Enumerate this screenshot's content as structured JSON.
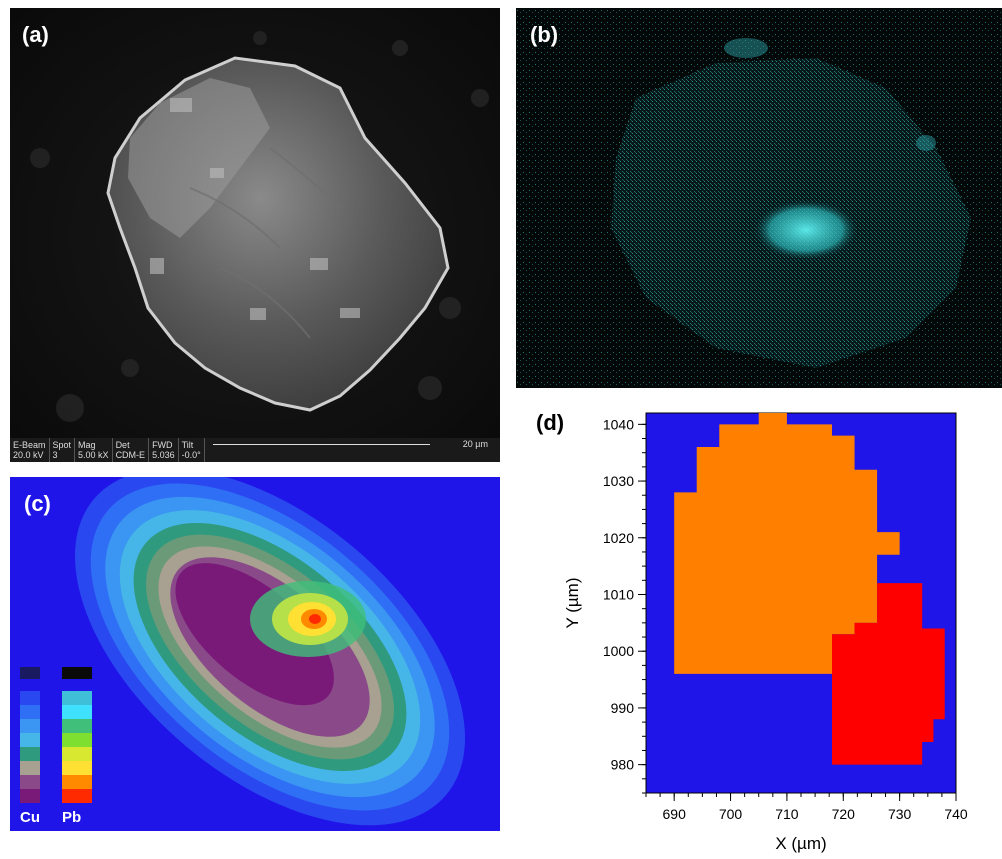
{
  "panels": {
    "a": {
      "label": "(a)"
    },
    "b": {
      "label": "(b)"
    },
    "c": {
      "label": "(c)"
    },
    "d": {
      "label": "(d)"
    }
  },
  "sem_databar": {
    "headers": [
      "E-Beam",
      "Spot",
      "Mag",
      "Det",
      "FWD",
      "Tilt"
    ],
    "values": [
      "20.0 kV",
      "3",
      "5.00 kX",
      "CDM-E",
      "5.036",
      "-0.0°"
    ],
    "scale_label": "20 µm"
  },
  "legend": {
    "cu_label": "Cu",
    "pb_label": "Pb"
  },
  "colors": {
    "background_blue": "#1f15e8",
    "orange_region": "#ff8000",
    "red_region": "#ff0000",
    "eds_cyan": "#33dddd"
  },
  "chart_data": {
    "type": "heatmap",
    "xlabel": "X (µm)",
    "ylabel": "Y (µm)",
    "xlim": [
      685,
      740
    ],
    "ylim": [
      975,
      1042
    ],
    "xticks": [
      690,
      700,
      710,
      720,
      730,
      740
    ],
    "yticks": [
      980,
      990,
      1000,
      1010,
      1020,
      1030,
      1040
    ],
    "grid": false,
    "regions": [
      {
        "color": "orange",
        "outline": [
          [
            705,
            1042
          ],
          [
            710,
            1042
          ],
          [
            710,
            1040
          ],
          [
            718,
            1040
          ],
          [
            718,
            1038
          ],
          [
            722,
            1038
          ],
          [
            722,
            1032
          ],
          [
            726,
            1032
          ],
          [
            726,
            1021
          ],
          [
            730,
            1021
          ],
          [
            730,
            1017
          ],
          [
            726,
            1017
          ],
          [
            726,
            1005
          ],
          [
            722,
            1005
          ],
          [
            722,
            1003
          ],
          [
            718,
            1003
          ],
          [
            718,
            996
          ],
          [
            690,
            996
          ],
          [
            690,
            1028
          ],
          [
            694,
            1028
          ],
          [
            694,
            1036
          ],
          [
            698,
            1036
          ],
          [
            698,
            1040
          ],
          [
            705,
            1040
          ]
        ]
      },
      {
        "color": "red",
        "outline": [
          [
            726,
            1012
          ],
          [
            734,
            1012
          ],
          [
            734,
            1004
          ],
          [
            738,
            1004
          ],
          [
            738,
            988
          ],
          [
            736,
            988
          ],
          [
            736,
            984
          ],
          [
            734,
            984
          ],
          [
            734,
            980
          ],
          [
            718,
            980
          ],
          [
            718,
            1000
          ],
          [
            718,
            1003
          ],
          [
            722,
            1003
          ],
          [
            722,
            1005
          ],
          [
            726,
            1005
          ]
        ]
      }
    ]
  }
}
